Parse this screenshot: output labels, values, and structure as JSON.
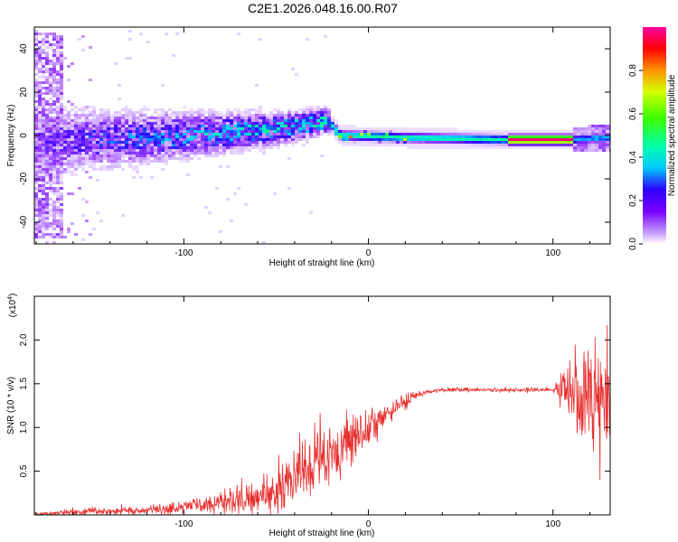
{
  "title": "C2E1.2026.048.16.00.R07",
  "colors": {
    "snr_line": "#e83030",
    "axis": "#000000",
    "background": "#ffffff"
  },
  "chart_data": [
    {
      "type": "heatmap",
      "title": "C2E1.2026.048.16.00.R07",
      "xlabel": "Height of straight line (km)",
      "ylabel": "Frequency (Hz)",
      "xlim": [
        -181,
        131
      ],
      "ylim": [
        -50,
        50
      ],
      "xticks": [
        -100,
        0,
        100
      ],
      "xtick_labels": [
        "-100",
        "0",
        "100"
      ],
      "yticks": [
        -40,
        -20,
        0,
        20,
        40
      ],
      "ytick_labels": [
        "-40",
        "-20",
        "0",
        "20",
        "40"
      ],
      "colorbar": {
        "label": "Normalized spectral amplitude",
        "range": [
          0,
          1
        ],
        "ticks": [
          0.0,
          0.2,
          0.4,
          0.6,
          0.8
        ],
        "tick_labels": [
          "0.0",
          "0.2",
          "0.4",
          "0.6",
          "0.8"
        ]
      },
      "features": {
        "noise_region_km": [
          -181,
          -20
        ],
        "carrier_start_km": -20,
        "carrier_ridge_hz_by_km": [
          [
            -180,
            -3
          ],
          [
            -120,
            -1
          ],
          [
            -80,
            1
          ],
          [
            -40,
            4
          ],
          [
            -22,
            7
          ],
          [
            -15,
            0
          ],
          [
            20,
            -1
          ],
          [
            75,
            -2
          ],
          [
            110,
            -2
          ],
          [
            131,
            -1
          ]
        ],
        "high_amplitude_segment_km": [
          75,
          110
        ]
      }
    },
    {
      "type": "line",
      "xlabel": "Height of straight line (km)",
      "ylabel": "SNR (10 * v/v)",
      "scale_label": "(x10",
      "scale_exponent": "4",
      "scale_suffix": ")",
      "xlim": [
        -181,
        131
      ],
      "ylim": [
        0,
        2.5
      ],
      "xticks": [
        -100,
        0,
        100
      ],
      "xtick_labels": [
        "-100",
        "0",
        "100"
      ],
      "yticks": [
        0.5,
        1.0,
        1.5,
        2.0
      ],
      "ytick_labels": [
        "0.5",
        "1.0",
        "1.5",
        "2.0"
      ],
      "series": [
        {
          "name": "SNR",
          "envelope_x": [
            -181,
            -150,
            -120,
            -100,
            -80,
            -60,
            -40,
            -30,
            -20,
            -10,
            0,
            10,
            20,
            30,
            40,
            60,
            80,
            100,
            108,
            115,
            120,
            125,
            131
          ],
          "envelope_mean": [
            0.01,
            0.04,
            0.05,
            0.08,
            0.13,
            0.22,
            0.42,
            0.55,
            0.7,
            0.85,
            0.98,
            1.15,
            1.3,
            1.4,
            1.43,
            1.43,
            1.43,
            1.43,
            1.45,
            1.42,
            1.35,
            1.3,
            1.3
          ],
          "envelope_spread": [
            0.02,
            0.04,
            0.05,
            0.07,
            0.1,
            0.18,
            0.3,
            0.35,
            0.35,
            0.25,
            0.2,
            0.12,
            0.08,
            0.03,
            0.02,
            0.02,
            0.03,
            0.02,
            0.3,
            0.55,
            0.65,
            0.6,
            0.55
          ]
        }
      ]
    }
  ]
}
